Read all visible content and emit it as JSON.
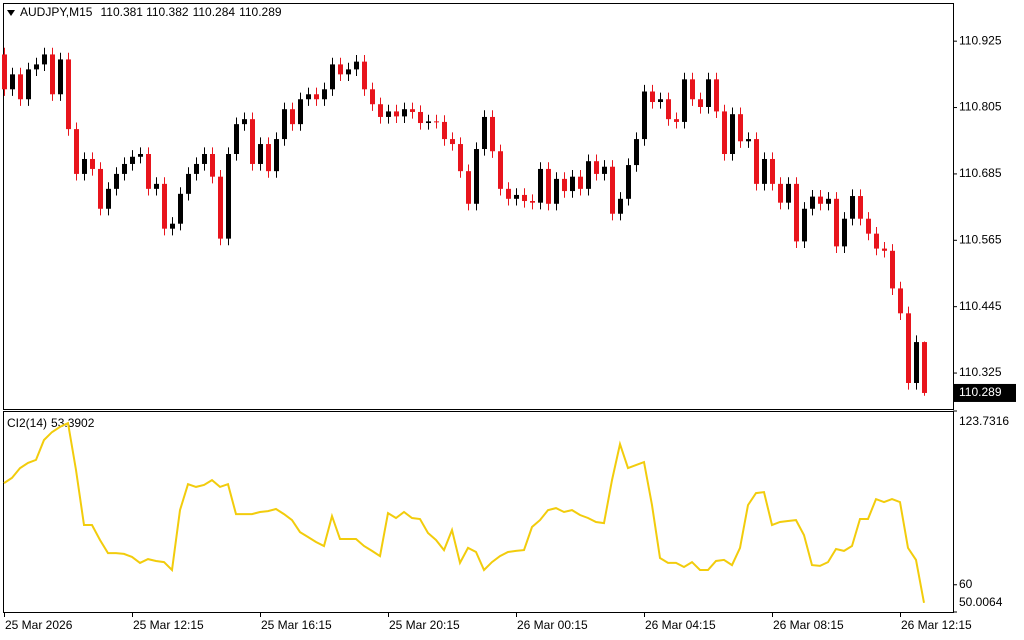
{
  "chart_data": [
    {
      "type": "candlestick",
      "symbol": "AUDJPY,M15",
      "categories": [
        "25 Mar 2026",
        null,
        null,
        null,
        null,
        null,
        null,
        null,
        null,
        null,
        null,
        null,
        null,
        null,
        null,
        null,
        "25 Mar 12:15",
        null,
        null,
        null,
        null,
        null,
        null,
        null,
        null,
        null,
        null,
        null,
        null,
        null,
        null,
        null,
        "25 Mar 16:15",
        null,
        null,
        null,
        null,
        null,
        null,
        null,
        null,
        null,
        null,
        null,
        null,
        null,
        null,
        null,
        "25 Mar 20:15",
        null,
        null,
        null,
        null,
        null,
        null,
        null,
        null,
        null,
        null,
        null,
        null,
        null,
        null,
        null,
        "26 Mar 00:15",
        null,
        null,
        null,
        null,
        null,
        null,
        null,
        null,
        null,
        null,
        null,
        null,
        null,
        null,
        null,
        "26 Mar 04:15",
        null,
        null,
        null,
        null,
        null,
        null,
        null,
        null,
        null,
        null,
        null,
        null,
        null,
        null,
        null,
        "26 Mar 08:15",
        null,
        null,
        null,
        null,
        null,
        null,
        null,
        null,
        null,
        null,
        null,
        null,
        null,
        null,
        null,
        "26 Mar 12:15",
        null,
        null,
        null
      ],
      "open": [
        110.901,
        110.838,
        110.865,
        110.82,
        110.874,
        110.883,
        110.901,
        110.829,
        110.892,
        110.766,
        110.685,
        110.712,
        110.694,
        110.622,
        110.658,
        110.685,
        110.703,
        110.716,
        110.721,
        110.658,
        110.667,
        110.586,
        110.595,
        110.649,
        110.685,
        110.703,
        110.721,
        110.68,
        110.568,
        110.721,
        110.775,
        110.784,
        110.703,
        110.739,
        110.69,
        110.748,
        110.802,
        110.775,
        110.82,
        110.829,
        110.82,
        110.838,
        110.883,
        110.865,
        110.874,
        110.888,
        110.838,
        110.811,
        110.788,
        110.798,
        110.789,
        110.802,
        110.797,
        110.777,
        110.78,
        110.779,
        110.748,
        110.739,
        110.69,
        110.631,
        110.73,
        110.788,
        110.726,
        110.658,
        110.64,
        110.647,
        110.636,
        110.633,
        110.694,
        110.631,
        110.676,
        110.654,
        110.68,
        110.658,
        110.708,
        110.685,
        110.698,
        110.613,
        110.64,
        110.701,
        110.748,
        110.834,
        110.815,
        110.82,
        110.784,
        110.779,
        110.856,
        110.82,
        110.806,
        110.856,
        110.798,
        110.721,
        110.793,
        110.744,
        110.748,
        110.667,
        110.712,
        110.667,
        110.633,
        110.667,
        110.563,
        110.622,
        110.644,
        110.631,
        110.64,
        110.554,
        110.604,
        110.645,
        110.604,
        110.577,
        110.55,
        110.546,
        110.478,
        110.433,
        110.307,
        110.381
      ],
      "high": [
        110.913,
        110.877,
        110.877,
        110.886,
        110.895,
        110.913,
        110.913,
        110.904,
        110.904,
        110.778,
        110.724,
        110.724,
        110.706,
        110.67,
        110.697,
        110.715,
        110.728,
        110.733,
        110.733,
        110.679,
        110.679,
        110.607,
        110.661,
        110.697,
        110.715,
        110.733,
        110.733,
        110.692,
        110.733,
        110.787,
        110.796,
        110.796,
        110.751,
        110.751,
        110.76,
        110.814,
        110.814,
        110.832,
        110.841,
        110.841,
        110.85,
        110.895,
        110.895,
        110.886,
        110.9,
        110.9,
        110.85,
        110.823,
        110.81,
        110.81,
        110.814,
        110.814,
        110.809,
        110.792,
        110.792,
        110.791,
        110.76,
        110.751,
        110.702,
        110.742,
        110.8,
        110.8,
        110.738,
        110.67,
        110.659,
        110.659,
        110.648,
        110.706,
        110.706,
        110.688,
        110.688,
        110.692,
        110.692,
        110.72,
        110.72,
        110.71,
        110.71,
        110.652,
        110.713,
        110.76,
        110.846,
        110.846,
        110.832,
        110.832,
        110.796,
        110.868,
        110.868,
        110.832,
        110.868,
        110.868,
        110.81,
        110.805,
        110.805,
        110.76,
        110.76,
        110.724,
        110.724,
        110.679,
        110.679,
        110.679,
        110.634,
        110.656,
        110.656,
        110.652,
        110.652,
        110.616,
        110.657,
        110.657,
        110.616,
        110.589,
        110.562,
        110.558,
        110.49,
        110.445,
        110.393,
        110.382
      ],
      "low": [
        110.826,
        110.826,
        110.808,
        110.808,
        110.862,
        110.871,
        110.817,
        110.817,
        110.754,
        110.673,
        110.673,
        110.682,
        110.61,
        110.61,
        110.646,
        110.673,
        110.691,
        110.704,
        110.646,
        110.646,
        110.574,
        110.574,
        110.583,
        110.637,
        110.673,
        110.691,
        110.668,
        110.556,
        110.556,
        110.709,
        110.763,
        110.691,
        110.691,
        110.678,
        110.678,
        110.736,
        110.763,
        110.763,
        110.808,
        110.808,
        110.808,
        110.826,
        110.853,
        110.853,
        110.862,
        110.826,
        110.799,
        110.776,
        110.776,
        110.777,
        110.777,
        110.785,
        110.765,
        110.765,
        110.767,
        110.736,
        110.727,
        110.678,
        110.619,
        110.619,
        110.718,
        110.714,
        110.646,
        110.628,
        110.628,
        110.624,
        110.621,
        110.621,
        110.619,
        110.619,
        110.642,
        110.642,
        110.646,
        110.646,
        110.673,
        110.673,
        110.601,
        110.601,
        110.628,
        110.689,
        110.736,
        110.803,
        110.803,
        110.772,
        110.767,
        110.767,
        110.808,
        110.794,
        110.794,
        110.786,
        110.709,
        110.709,
        110.732,
        110.732,
        110.655,
        110.655,
        110.655,
        110.621,
        110.621,
        110.551,
        110.551,
        110.61,
        110.619,
        110.619,
        110.542,
        110.542,
        110.592,
        110.592,
        110.565,
        110.538,
        110.534,
        110.466,
        110.421,
        110.295,
        110.295,
        110.284
      ],
      "close": [
        110.838,
        110.865,
        110.82,
        110.874,
        110.883,
        110.901,
        110.829,
        110.892,
        110.766,
        110.685,
        110.712,
        110.694,
        110.622,
        110.658,
        110.685,
        110.703,
        110.716,
        110.721,
        110.658,
        110.667,
        110.586,
        110.595,
        110.649,
        110.685,
        110.703,
        110.721,
        110.68,
        110.568,
        110.721,
        110.775,
        110.784,
        110.703,
        110.739,
        110.69,
        110.748,
        110.802,
        110.775,
        110.82,
        110.829,
        110.82,
        110.838,
        110.883,
        110.865,
        110.874,
        110.888,
        110.838,
        110.811,
        110.788,
        110.798,
        110.789,
        110.802,
        110.797,
        110.777,
        110.78,
        110.779,
        110.748,
        110.739,
        110.69,
        110.631,
        110.73,
        110.788,
        110.726,
        110.658,
        110.64,
        110.647,
        110.636,
        110.633,
        110.694,
        110.631,
        110.676,
        110.654,
        110.68,
        110.658,
        110.708,
        110.685,
        110.698,
        110.613,
        110.64,
        110.701,
        110.748,
        110.834,
        110.815,
        110.82,
        110.784,
        110.779,
        110.856,
        110.82,
        110.806,
        110.856,
        110.798,
        110.721,
        110.793,
        110.744,
        110.748,
        110.667,
        110.712,
        110.667,
        110.633,
        110.667,
        110.563,
        110.622,
        110.644,
        110.631,
        110.64,
        110.554,
        110.604,
        110.645,
        110.604,
        110.577,
        110.55,
        110.546,
        110.478,
        110.433,
        110.307,
        110.381,
        110.289
      ],
      "up_color": "#000000",
      "down_color": "#e8141c",
      "ylim": [
        110.26,
        110.994
      ],
      "yticks": [
        110.925,
        110.805,
        110.685,
        110.565,
        110.445,
        110.325
      ]
    },
    {
      "type": "line",
      "name": "CI2(14)",
      "color": "#f2cc0c",
      "values": [
        97.3,
        99.2,
        102.8,
        104.7,
        105.8,
        113.1,
        116.0,
        117.9,
        119.3,
        102.1,
        81.9,
        81.9,
        76.4,
        71.6,
        71.6,
        71.3,
        70.2,
        68.0,
        69.4,
        68.7,
        68.3,
        65.4,
        87.4,
        96.9,
        95.9,
        96.6,
        98.4,
        95.9,
        96.9,
        85.9,
        85.9,
        85.9,
        86.7,
        87.0,
        87.8,
        85.9,
        83.7,
        79.3,
        77.5,
        75.7,
        74.2,
        85.2,
        76.8,
        76.8,
        76.8,
        74.2,
        72.4,
        70.5,
        86.3,
        84.5,
        86.7,
        84.5,
        84.1,
        79.0,
        76.4,
        72.7,
        80.1,
        68.0,
        73.5,
        72.0,
        65.4,
        68.3,
        70.5,
        72.0,
        72.4,
        72.7,
        81.2,
        83.7,
        87.4,
        88.1,
        86.7,
        87.4,
        85.6,
        84.5,
        83.0,
        82.6,
        98.4,
        111.6,
        102.8,
        103.9,
        105.0,
        89.2,
        69.8,
        68.0,
        68.0,
        66.5,
        68.3,
        65.4,
        65.4,
        68.7,
        69.1,
        67.2,
        73.5,
        89.2,
        93.6,
        94.0,
        81.9,
        83.0,
        83.4,
        83.7,
        78.2,
        67.2,
        66.9,
        68.3,
        73.1,
        72.4,
        74.2,
        84.1,
        84.1,
        91.4,
        90.3,
        91.4,
        90.3,
        73.5,
        69.1,
        53.3902
      ],
      "ylim": [
        50.0064,
        123.7316
      ],
      "yticks": [
        50.0064,
        60,
        123.7316
      ]
    }
  ]
}
